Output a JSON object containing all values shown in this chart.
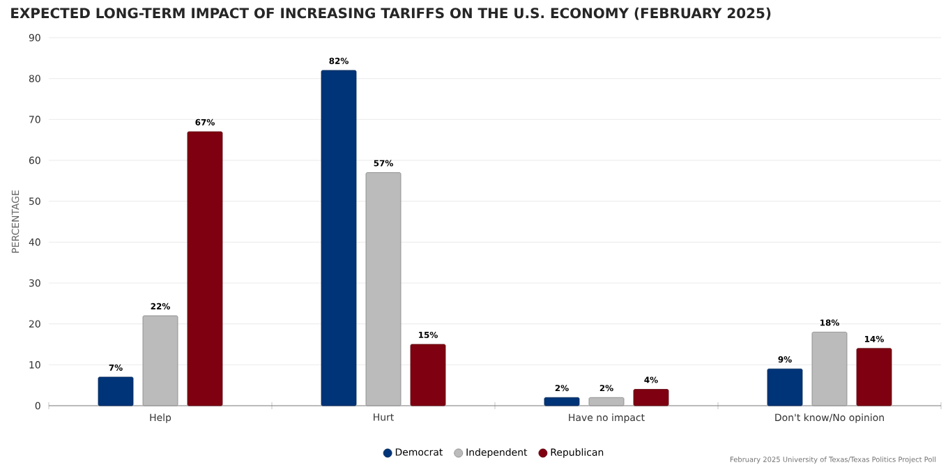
{
  "chart_data": {
    "type": "bar",
    "title": "EXPECTED LONG-TERM IMPACT OF INCREASING TARIFFS ON THE U.S. ECONOMY (FEBRUARY 2025)",
    "ylabel": "PERCENTAGE",
    "categories": [
      "Help",
      "Hurt",
      "Have no impact",
      "Don't know/No opinion"
    ],
    "series": [
      {
        "name": "Democrat",
        "color": "#003478",
        "values": [
          7,
          82,
          2,
          9
        ],
        "value_labels": [
          "7%",
          "82%",
          "2%",
          "9%"
        ]
      },
      {
        "name": "Independent",
        "color": "#bbbbbb",
        "values": [
          22,
          57,
          2,
          18
        ],
        "value_labels": [
          "22%",
          "57%",
          "2%",
          "18%"
        ]
      },
      {
        "name": "Republican",
        "color": "#7f0010",
        "values": [
          67,
          15,
          4,
          14
        ],
        "value_labels": [
          "67%",
          "15%",
          "4%",
          "14%"
        ]
      }
    ],
    "ylim": [
      0,
      90
    ],
    "yticks": [
      0,
      10,
      20,
      30,
      40,
      50,
      60,
      70,
      80,
      90
    ],
    "grid": "y",
    "legend": "bottom",
    "annotations": [
      "February 2025 University of Texas/Texas Politics Project Poll"
    ]
  }
}
